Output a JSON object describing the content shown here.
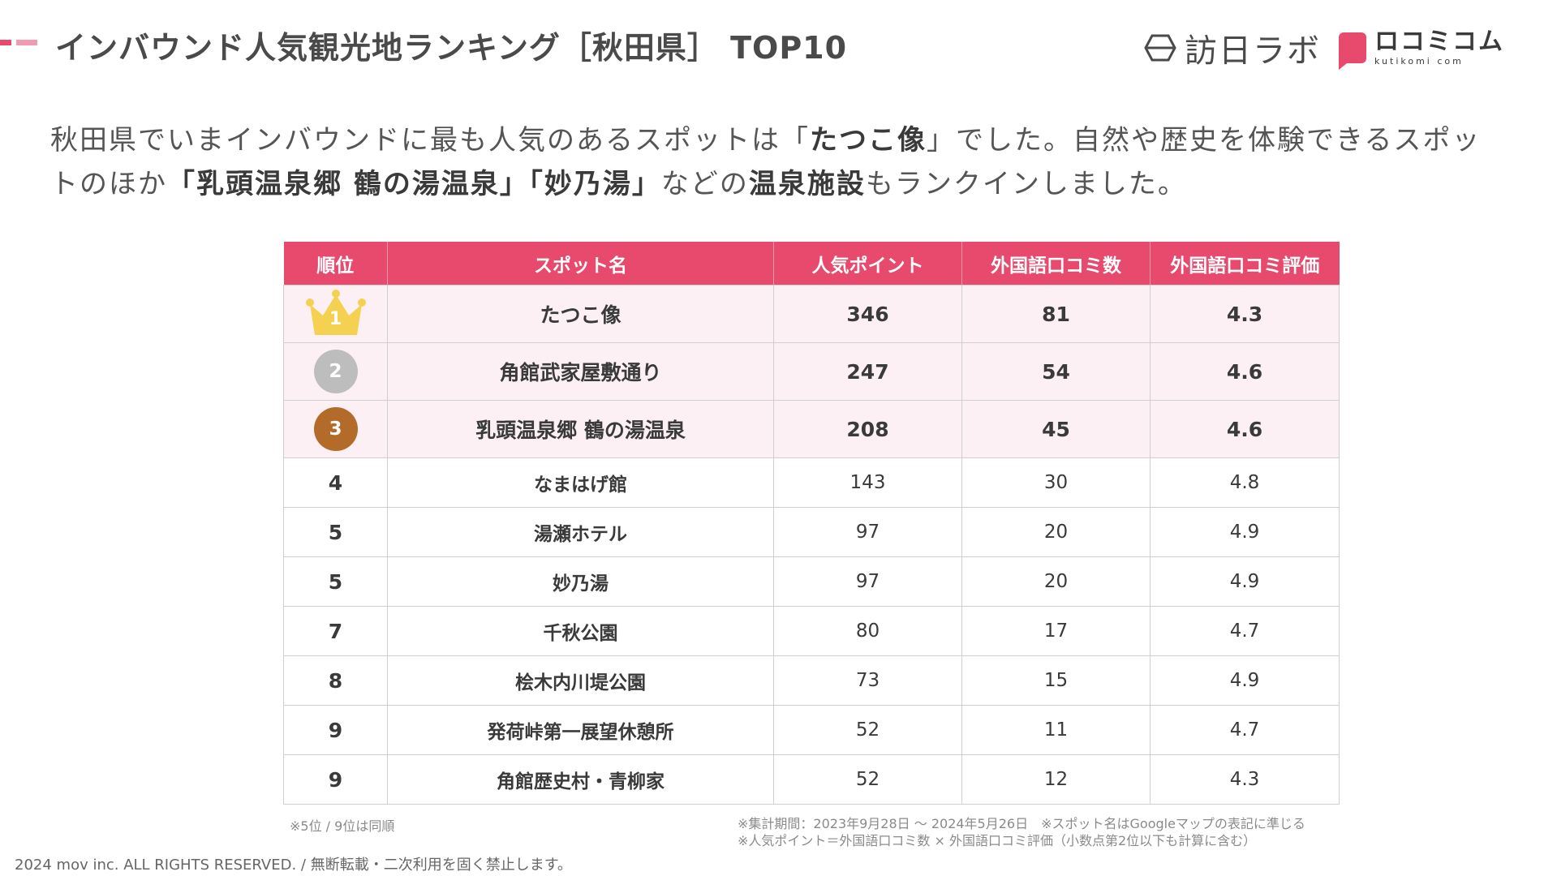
{
  "header": {
    "title": "インバウンド人気観光地ランキング［秋田県］ TOP10",
    "logo_houjin": "訪日ラボ",
    "logo_kuti_main": "ロコミコム",
    "logo_kuti_sub": "kutikomi com",
    "accent_color": "#e84a6e"
  },
  "lead": {
    "p1": "秋田県でいまインバウンドに最も人気のあるスポットは「",
    "b1": "たつこ像",
    "p2": "」でした。自然や歴史を体験できるスポットのほか",
    "b2": "「乳頭温泉郷 鶴の湯温泉」「妙乃湯」",
    "p3": "などの",
    "b3": "温泉施設",
    "p4": "もランクインしました。"
  },
  "table": {
    "headers": [
      "順位",
      "スポット名",
      "人気ポイント",
      "外国語口コミ数",
      "外国語口コミ評価"
    ],
    "rows": [
      {
        "rank": "1",
        "name": "たつこ像",
        "points": "346",
        "reviews": "81",
        "rating": "4.3",
        "medal": "gold"
      },
      {
        "rank": "2",
        "name": "角館武家屋敷通り",
        "points": "247",
        "reviews": "54",
        "rating": "4.6",
        "medal": "silver"
      },
      {
        "rank": "3",
        "name": "乳頭温泉郷 鶴の湯温泉",
        "points": "208",
        "reviews": "45",
        "rating": "4.6",
        "medal": "bronze"
      },
      {
        "rank": "4",
        "name": "なまはげ館",
        "points": "143",
        "reviews": "30",
        "rating": "4.8"
      },
      {
        "rank": "5",
        "name": "湯瀬ホテル",
        "points": "97",
        "reviews": "20",
        "rating": "4.9"
      },
      {
        "rank": "5",
        "name": "妙乃湯",
        "points": "97",
        "reviews": "20",
        "rating": "4.9"
      },
      {
        "rank": "7",
        "name": "千秋公園",
        "points": "80",
        "reviews": "17",
        "rating": "4.7"
      },
      {
        "rank": "8",
        "name": "桧木内川堤公園",
        "points": "73",
        "reviews": "15",
        "rating": "4.9"
      },
      {
        "rank": "9",
        "name": "発荷峠第一展望休憩所",
        "points": "52",
        "reviews": "11",
        "rating": "4.7"
      },
      {
        "rank": "9",
        "name": "角館歴史村・青柳家",
        "points": "52",
        "reviews": "12",
        "rating": "4.3"
      }
    ]
  },
  "notes": {
    "left": "※5位 / 9位は同順",
    "right1": "※集計期間：2023年9月28日 〜 2024年5月26日　※スポット名はGoogleマップの表記に準じる",
    "right2": "※人気ポイント＝外国語口コミ数 × 外国語口コミ評価（小数点第2位以下も計算に含む）"
  },
  "footer": {
    "copyright": "2024 mov inc. ALL RIGHTS RESERVED. / 無断転載・二次利用を固く禁止します。"
  }
}
